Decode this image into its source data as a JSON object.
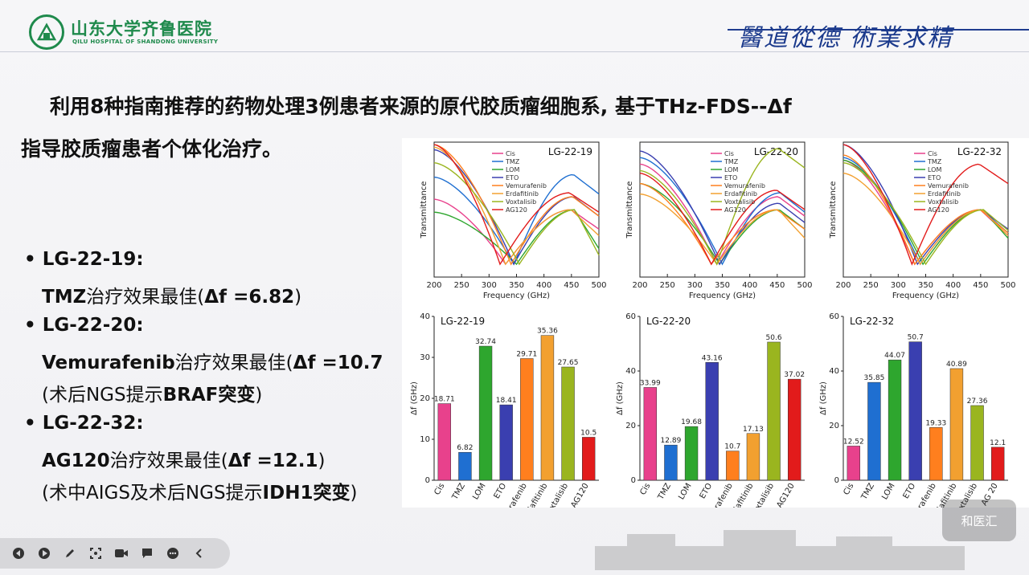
{
  "header": {
    "logo_cn": "山东大学齐鲁医院",
    "logo_en": "QILU HOSPITAL OF SHANDONG UNIVERSITY",
    "motto": "醫道從德 術業求精"
  },
  "title": {
    "line1": "利用8种指南推荐的药物处理3例患者来源的原代胶质瘤细胞系, 基于THz-FDS--Δf",
    "line2": "指导胶质瘤患者个体化治疗。"
  },
  "bullets": [
    {
      "label": "LG-22-19:",
      "text_pre": "TMZ",
      "text_mid": "治疗效果最佳(",
      "text_bold": "Δf =6.82",
      "text_end": ")"
    },
    {
      "label": "LG-22-20:",
      "text_pre": "Vemurafenib",
      "text_mid": "治疗效果最佳(",
      "text_bold": "Δf =10.7",
      "note_pre": "(术后NGS提示",
      "note_bold": "BRAF突变",
      "note_end": ")"
    },
    {
      "label": "LG-22-32:",
      "text_pre": "AG120",
      "text_mid": "治疗效果最佳(",
      "text_bold": "Δf =12.1",
      "text_end": ")",
      "note_pre": "(术中AIGS及术后NGS提示",
      "note_bold": "IDH1突变",
      "note_end": ")"
    }
  ],
  "legend_items": [
    "Cis",
    "TMZ",
    "LOM",
    "ETO",
    "Vemurafenib",
    "Erdafitinib",
    "Voxtalisib",
    "AG120"
  ],
  "colors": {
    "Cis": "#e8418c",
    "TMZ": "#1f6fd1",
    "LOM": "#2ea62e",
    "ETO": "#3a3fb0",
    "Vemurafenib": "#ff7f1e",
    "Erdafitinib": "#f2a030",
    "Voxtalisib": "#9ab51f",
    "AG120": "#e21b1b"
  },
  "line_axis": {
    "xlabel": "Frequency (GHz)",
    "ylabel": "Transmittance",
    "xticks": [
      "200",
      "250",
      "300",
      "350",
      "400",
      "450",
      "500"
    ]
  },
  "bar_axis": {
    "ylabel": "Δf (GHz)",
    "yticks": [
      "0",
      "10",
      "20",
      "30",
      "40"
    ],
    "yticks60": [
      "0",
      "20",
      "40",
      "60"
    ]
  },
  "chart_data": [
    {
      "type": "line",
      "title": "LG-22-19",
      "xlabel": "Frequency (GHz)",
      "ylabel": "Transmittance",
      "xlim": [
        200,
        500
      ],
      "series": [
        {
          "name": "Cis",
          "minima": 330,
          "start": 0.58,
          "end": 0.35
        },
        {
          "name": "TMZ",
          "minima": 345,
          "start": 0.75,
          "end": 0.62
        },
        {
          "name": "LOM",
          "minima": 350,
          "start": 0.48,
          "end": 0.2
        },
        {
          "name": "ETO",
          "minima": 345,
          "start": 0.96,
          "end": 0.45
        },
        {
          "name": "Vemurafenib",
          "minima": 340,
          "start": 1.0,
          "end": 0.45
        },
        {
          "name": "Erdafitinib",
          "minima": 330,
          "start": 0.98,
          "end": 0.3
        },
        {
          "name": "Voxtalisib",
          "minima": 355,
          "start": 0.86,
          "end": 0.15
        },
        {
          "name": "AG120",
          "minima": 320,
          "start": 1.0,
          "end": 0.48
        }
      ]
    },
    {
      "type": "line",
      "title": "LG-22-20",
      "xlabel": "Frequency (GHz)",
      "ylabel": "Transmittance",
      "xlim": [
        200,
        500
      ],
      "series": [
        {
          "name": "Cis",
          "minima": 340,
          "start": 0.85,
          "end": 0.45
        },
        {
          "name": "TMZ",
          "minima": 350,
          "start": 0.9,
          "end": 0.48
        },
        {
          "name": "LOM",
          "minima": 345,
          "start": 0.7,
          "end": 0.35
        },
        {
          "name": "ETO",
          "minima": 345,
          "start": 0.95,
          "end": 0.4
        },
        {
          "name": "Vemurafenib",
          "minima": 330,
          "start": 0.7,
          "end": 0.35
        },
        {
          "name": "Erdafitinib",
          "minima": 340,
          "start": 0.62,
          "end": 0.28
        },
        {
          "name": "Voxtalisib",
          "minima": 340,
          "start": 0.8,
          "end": 0.82
        },
        {
          "name": "AG120",
          "minima": 330,
          "start": 0.78,
          "end": 0.5
        }
      ]
    },
    {
      "type": "line",
      "title": "LG-22-32",
      "xlabel": "Frequency (GHz)",
      "ylabel": "Transmittance",
      "xlim": [
        200,
        500
      ],
      "series": [
        {
          "name": "Cis",
          "minima": 330,
          "start": 0.88,
          "end": 0.3
        },
        {
          "name": "TMZ",
          "minima": 340,
          "start": 0.9,
          "end": 0.32
        },
        {
          "name": "LOM",
          "minima": 345,
          "start": 0.88,
          "end": 0.28
        },
        {
          "name": "ETO",
          "minima": 335,
          "start": 1.0,
          "end": 0.35
        },
        {
          "name": "Vemurafenib",
          "minima": 330,
          "start": 0.92,
          "end": 0.32
        },
        {
          "name": "Erdafitinib",
          "minima": 340,
          "start": 0.78,
          "end": 0.3
        },
        {
          "name": "Voxtalisib",
          "minima": 350,
          "start": 0.86,
          "end": 0.34
        },
        {
          "name": "AG120",
          "minima": 325,
          "start": 1.0,
          "end": 0.7
        }
      ]
    },
    {
      "type": "bar",
      "title": "LG-22-19",
      "ylabel": "Δf (GHz)",
      "ylim": [
        0,
        40
      ],
      "categories": [
        "Cis",
        "TMZ",
        "LOM",
        "ETO",
        "Vemurafenib",
        "Erdafitinib",
        "Voxtalisib",
        "AG120"
      ],
      "values": [
        18.71,
        6.82,
        32.74,
        18.41,
        29.71,
        35.36,
        27.65,
        10.5
      ],
      "labels": [
        "18.71",
        "6.82",
        "32.74",
        "18.41",
        "29.71",
        "35.36",
        "27.65",
        "10.5"
      ]
    },
    {
      "type": "bar",
      "title": "LG-22-20",
      "ylabel": "Δf (GHz)",
      "ylim": [
        0,
        60
      ],
      "categories": [
        "Cis",
        "TMZ",
        "LOM",
        "ETO",
        "Vemurafenib",
        "Erdafitinib",
        "Voxtalisib",
        "AG120"
      ],
      "values": [
        33.99,
        12.89,
        19.68,
        43.16,
        10.7,
        17.13,
        50.6,
        37.02
      ],
      "labels": [
        "33.99",
        "12.89",
        "19.68",
        "43.16",
        "10.7",
        "17.13",
        "50.6",
        "37.02"
      ]
    },
    {
      "type": "bar",
      "title": "LG-22-32",
      "ylabel": "Δf (GHz)",
      "ylim": [
        0,
        60
      ],
      "categories": [
        "Cis",
        "TMZ",
        "LOM",
        "ETO",
        "Vemurafenib",
        "Erdafitinib",
        "Voxtalisib",
        "AG 20"
      ],
      "values": [
        12.52,
        35.85,
        44.07,
        50.7,
        19.33,
        40.89,
        27.36,
        12.1
      ],
      "labels": [
        "12.52",
        "35.85",
        "44.07",
        "50.7",
        "19.33",
        "40.89",
        "27.36",
        "12.1"
      ]
    }
  ],
  "toolbar": {
    "icons": [
      "prev-icon",
      "play-icon",
      "pen-icon",
      "screenshot-icon",
      "camera-icon",
      "comment-icon",
      "more-icon",
      "collapse-icon"
    ]
  },
  "watermark": {
    "text": "和医汇"
  }
}
